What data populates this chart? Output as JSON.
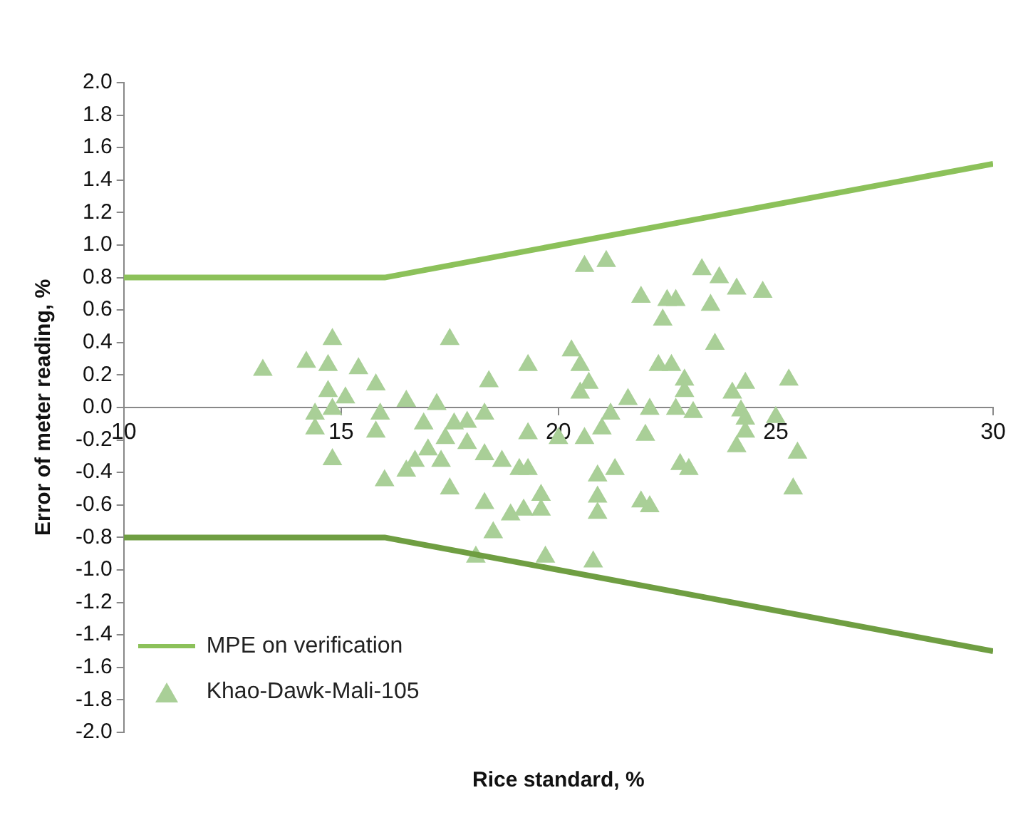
{
  "chart_data": {
    "type": "scatter",
    "xlabel": "Rice standard, %",
    "ylabel": "Error of meter reading, %",
    "xlim": [
      10,
      30
    ],
    "xticks": [
      10,
      15,
      20,
      25,
      30
    ],
    "ylim": [
      -2,
      2
    ],
    "yticks": [
      {
        "value": 2,
        "label": "2.0"
      },
      {
        "value": 1.8,
        "label": "1.8"
      },
      {
        "value": 1.6,
        "label": "1.6"
      },
      {
        "value": 1.4,
        "label": "1.4"
      },
      {
        "value": 1.2,
        "label": "1.2"
      },
      {
        "value": 1,
        "label": "1.0"
      },
      {
        "value": 0.8,
        "label": "0.8"
      },
      {
        "value": 0.6,
        "label": "0.6"
      },
      {
        "value": 0.4,
        "label": "0.4"
      },
      {
        "value": 0.2,
        "label": "0.2"
      },
      {
        "value": 0,
        "label": "0.0"
      },
      {
        "value": -0.2,
        "label": "-0.2"
      },
      {
        "value": -0.4,
        "label": "-0.4"
      },
      {
        "value": -0.6,
        "label": "-0.6"
      },
      {
        "value": -0.8,
        "label": "-0.8"
      },
      {
        "value": -1,
        "label": "-1.0"
      },
      {
        "value": -1.2,
        "label": "-1.2"
      },
      {
        "value": -1.4,
        "label": "-1.4"
      },
      {
        "value": -1.6,
        "label": "-1.6"
      },
      {
        "value": -1.8,
        "label": "-1.8"
      },
      {
        "value": -2,
        "label": "-2.0"
      }
    ],
    "grid": false,
    "legend": "bottom left",
    "line_style": "solid",
    "series": [
      {
        "name": "MPE on verification",
        "type": "line",
        "marker": "none",
        "color": "#8cc15a",
        "x": [
          10,
          16,
          30
        ],
        "values": [
          0.8,
          0.8,
          1.5
        ]
      },
      {
        "type": "line",
        "marker": "none",
        "color": "#6f9e42",
        "x": [
          10,
          16,
          30
        ],
        "values": [
          -0.8,
          -0.8,
          -1.5
        ]
      },
      {
        "name": "Khao-Dawk-Mali-105",
        "type": "scatter",
        "marker": "triangle",
        "color": "#a9cf97",
        "x": [
          13.2,
          14.2,
          14.7,
          15.4,
          15.8,
          14.7,
          15.1,
          14.8,
          14.4,
          14.4,
          15.9,
          15.8,
          16.5,
          17.2,
          16.9,
          17.6,
          17.9,
          18.3,
          18.4,
          17.4,
          17.9,
          17,
          16.7,
          17.3,
          18.3,
          18.7,
          14.8,
          16,
          16.5,
          17.5,
          18.3,
          18.9,
          18.5,
          18.1,
          17.5,
          14.8,
          20.6,
          21.1,
          23.3,
          23.7,
          24.1,
          24.7,
          21.9,
          22.5,
          22.7,
          22.4,
          23.5,
          23.6,
          19.3,
          20.3,
          20.5,
          22.3,
          22.6,
          22.9,
          22.9,
          20.7,
          20.5,
          24.3,
          24,
          25.3,
          21.6,
          21.2,
          22.1,
          22.7,
          23.1,
          24.2,
          24.3,
          25,
          19.3,
          21,
          20.6,
          20,
          22,
          24.3,
          24.1,
          25.5,
          19.1,
          19.3,
          20.9,
          21.3,
          22.8,
          23,
          25.4,
          19.6,
          19.6,
          19.2,
          20.9,
          20.9,
          21.9,
          22.1,
          19.7,
          20.8
        ],
        "values": [
          0.23,
          0.28,
          0.26,
          0.24,
          0.14,
          0.1,
          0.06,
          -0.01,
          -0.04,
          -0.13,
          -0.04,
          -0.15,
          0.04,
          0.02,
          -0.1,
          -0.1,
          -0.09,
          -0.04,
          0.16,
          -0.19,
          -0.22,
          -0.26,
          -0.33,
          -0.33,
          -0.29,
          -0.33,
          -0.32,
          -0.45,
          -0.39,
          -0.5,
          -0.59,
          -0.66,
          -0.77,
          -0.92,
          0.42,
          0.42,
          0.87,
          0.9,
          0.85,
          0.8,
          0.73,
          0.71,
          0.68,
          0.66,
          0.66,
          0.54,
          0.63,
          0.39,
          0.26,
          0.35,
          0.26,
          0.26,
          0.26,
          0.17,
          0.1,
          0.15,
          0.09,
          0.15,
          0.09,
          0.17,
          0.05,
          -0.04,
          -0.01,
          -0.01,
          -0.03,
          -0.02,
          -0.07,
          -0.06,
          -0.16,
          -0.13,
          -0.19,
          -0.19,
          -0.17,
          -0.15,
          -0.24,
          -0.28,
          -0.38,
          -0.38,
          -0.42,
          -0.38,
          -0.35,
          -0.38,
          -0.5,
          -0.54,
          -0.63,
          -0.63,
          -0.55,
          -0.65,
          -0.58,
          -0.61,
          -0.92,
          -0.95
        ]
      }
    ]
  }
}
